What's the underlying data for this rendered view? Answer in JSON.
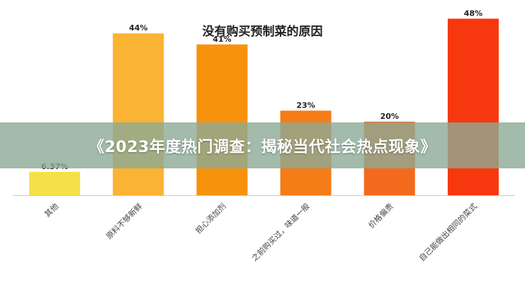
{
  "banner": {
    "text": "《2023年度热门调查：揭秘当代社会热点现象》"
  },
  "chart_data": {
    "type": "bar",
    "title": "没有购买预制菜的原因",
    "xlabel": "",
    "ylabel": "",
    "ylim": [
      0,
      50
    ],
    "grid": false,
    "categories": [
      "其他",
      "原料不够新鲜",
      "担心添加剂",
      "之前购买过，味道一般",
      "价格偏贵",
      "自己能做出相同的菜式"
    ],
    "values": [
      6.37,
      44,
      41,
      23,
      20,
      48
    ],
    "data_labels": [
      "6.37%",
      "44%",
      "41%",
      "23%",
      "20%",
      "48%"
    ],
    "colors": [
      "#F5E04A",
      "#FBB333",
      "#F7920C",
      "#F47D17",
      "#F46A1C",
      "#F7380E"
    ]
  }
}
